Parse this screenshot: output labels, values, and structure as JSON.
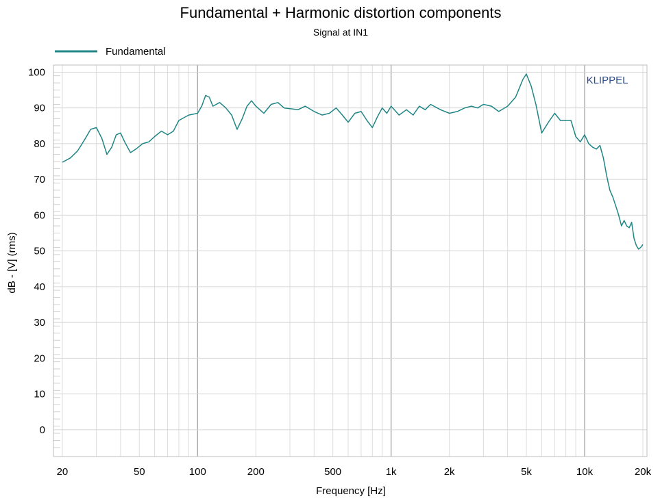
{
  "chart_data": {
    "type": "line",
    "title": "Fundamental + Harmonic distortion components",
    "subtitle": "Signal at IN1",
    "xlabel": "Frequency [Hz]",
    "ylabel": "dB - [V] (rms)",
    "x_scale": "log",
    "xlim": [
      18,
      21000
    ],
    "ylim": [
      -7.5,
      102
    ],
    "x_ticks": [
      20,
      50,
      100,
      200,
      500,
      1000,
      2000,
      5000,
      10000,
      20000
    ],
    "x_tick_labels": [
      "20",
      "50",
      "100",
      "200",
      "500",
      "1k",
      "2k",
      "5k",
      "10k",
      "20k"
    ],
    "y_ticks": [
      0,
      10,
      20,
      30,
      40,
      50,
      60,
      70,
      80,
      90,
      100
    ],
    "y_tick_labels": [
      "0",
      "10",
      "20",
      "30",
      "40",
      "50",
      "60",
      "70",
      "80",
      "90",
      "100"
    ],
    "grid": true,
    "legend_position": "top-left",
    "brand_label": "KLIPPEL",
    "series": [
      {
        "name": "Fundamental",
        "color": "#1f8585",
        "x": [
          20,
          22,
          24,
          26,
          28,
          30,
          32,
          34,
          36,
          38,
          40,
          42,
          45,
          48,
          52,
          56,
          60,
          65,
          70,
          75,
          80,
          90,
          100,
          105,
          110,
          115,
          120,
          130,
          140,
          150,
          160,
          170,
          180,
          190,
          200,
          220,
          240,
          260,
          280,
          300,
          330,
          360,
          400,
          440,
          480,
          520,
          560,
          600,
          650,
          700,
          750,
          800,
          850,
          900,
          950,
          1000,
          1100,
          1200,
          1300,
          1400,
          1500,
          1600,
          1800,
          2000,
          2200,
          2400,
          2600,
          2800,
          3000,
          3300,
          3600,
          4000,
          4400,
          4800,
          5000,
          5300,
          5600,
          6000,
          6500,
          7000,
          7500,
          8000,
          8500,
          9000,
          9500,
          10000,
          10500,
          11000,
          11500,
          12000,
          12500,
          13000,
          13500,
          14000,
          14500,
          15000,
          15500,
          16000,
          16500,
          17000,
          17500,
          18000,
          18500,
          19000,
          19500,
          20000
        ],
        "y": [
          74.8,
          76.0,
          78.0,
          81.0,
          84.0,
          84.5,
          81.5,
          77.0,
          79.0,
          82.5,
          83.0,
          80.5,
          77.5,
          78.5,
          80.0,
          80.5,
          82.0,
          83.5,
          82.5,
          83.5,
          86.5,
          88.0,
          88.5,
          90.5,
          93.5,
          93.0,
          90.5,
          91.5,
          90.0,
          88.0,
          84.0,
          87.0,
          90.5,
          92.0,
          90.5,
          88.5,
          91.0,
          91.5,
          90.0,
          89.8,
          89.5,
          90.5,
          89.0,
          88.0,
          88.5,
          90.0,
          88.0,
          86.0,
          88.5,
          89.0,
          86.5,
          84.5,
          87.5,
          90.0,
          88.5,
          90.5,
          88.0,
          89.5,
          88.0,
          90.5,
          89.5,
          91.0,
          89.5,
          88.5,
          89.0,
          90.0,
          90.5,
          90.0,
          91.0,
          90.5,
          89.0,
          90.5,
          93.0,
          98.0,
          99.5,
          96.0,
          91.0,
          83.0,
          86.0,
          88.5,
          86.5,
          86.5,
          86.5,
          82.0,
          80.5,
          82.5,
          80.0,
          79.0,
          78.5,
          79.5,
          76.0,
          71.0,
          67.0,
          65.0,
          62.5,
          60.0,
          57.0,
          58.5,
          57.0,
          56.5,
          58.0,
          53.5,
          51.5,
          50.5,
          51.0,
          51.8
        ]
      }
    ]
  }
}
